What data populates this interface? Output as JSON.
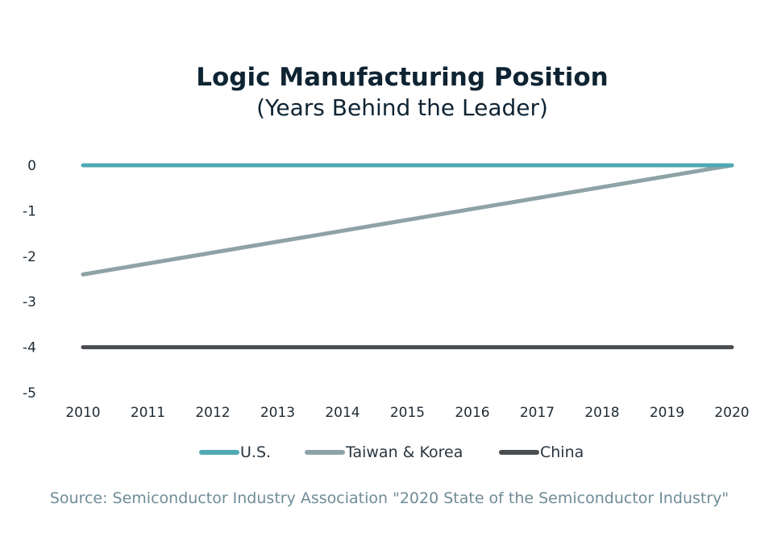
{
  "chart_data": {
    "type": "line",
    "title": "Logic Manufacturing Position",
    "subtitle": "(Years Behind the Leader)",
    "x": [
      2010,
      2011,
      2012,
      2013,
      2014,
      2015,
      2016,
      2017,
      2018,
      2019,
      2020
    ],
    "x_tick_labels": [
      "2010",
      "2011",
      "2012",
      "2013",
      "2014",
      "2015",
      "2016",
      "2017",
      "2018",
      "2019",
      "2020"
    ],
    "y_tick_labels": [
      "0",
      "-1",
      "-2",
      "-3",
      "-4",
      "-5"
    ],
    "y_ticks": [
      0,
      -1,
      -2,
      -3,
      -4,
      -5
    ],
    "ylim": [
      -5,
      0
    ],
    "xlim": [
      2010,
      2020
    ],
    "grid": false,
    "legend_position": "bottom-center",
    "series": [
      {
        "name": "U.S.",
        "color": "#4fa9b3",
        "x": [
          2010,
          2020
        ],
        "values": [
          0,
          0
        ]
      },
      {
        "name": "Taiwan & Korea",
        "color": "#8ea3a8",
        "x": [
          2010,
          2020
        ],
        "values": [
          -2.4,
          0
        ]
      },
      {
        "name": "China",
        "color": "#4a4d50",
        "x": [
          2010,
          2020
        ],
        "values": [
          -4,
          -4
        ]
      }
    ],
    "source": "Source: Semiconductor Industry Association \"2020 State of the Semiconductor Industry\""
  }
}
